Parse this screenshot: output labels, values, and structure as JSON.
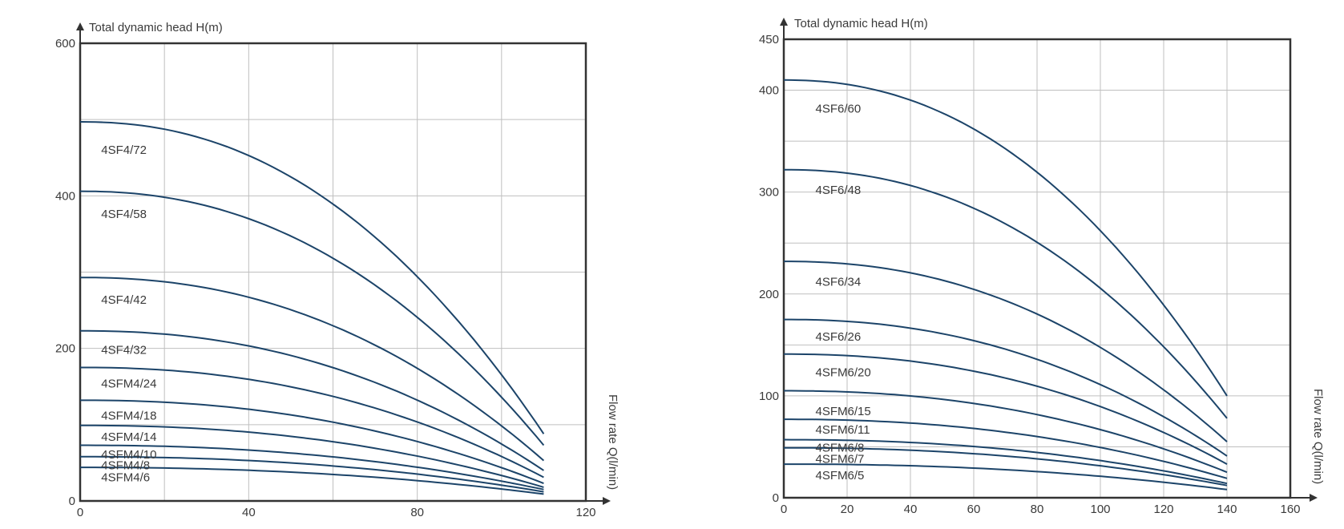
{
  "chart_data": [
    {
      "type": "line",
      "ylabel": "Total dynamic head H(m)",
      "xlabel": "Flow rate Q(l/min)",
      "xlim": [
        0,
        120
      ],
      "ylim": [
        0,
        600
      ],
      "xticks": [
        "0",
        "40",
        "80",
        "120"
      ],
      "yticks": [
        "0",
        "200",
        "400",
        "600"
      ],
      "grid": true,
      "series": [
        {
          "name": "4SF4/72",
          "shutoff": 497,
          "end": 88,
          "label_y": 460
        },
        {
          "name": "4SF4/58",
          "shutoff": 406,
          "end": 73,
          "label_y": 376
        },
        {
          "name": "4SF4/42",
          "shutoff": 293,
          "end": 53,
          "label_y": 264
        },
        {
          "name": "4SF4/32",
          "shutoff": 223,
          "end": 40,
          "label_y": 198
        },
        {
          "name": "4SFM4/24",
          "shutoff": 175,
          "end": 31,
          "label_y": 154
        },
        {
          "name": "4SFM4/18",
          "shutoff": 132,
          "end": 23,
          "label_y": 112
        },
        {
          "name": "4SFM4/14",
          "shutoff": 99,
          "end": 18,
          "label_y": 84
        },
        {
          "name": "4SFM4/10",
          "shutoff": 73,
          "end": 15,
          "label_y": 61
        },
        {
          "name": "4SFM4/8",
          "shutoff": 58,
          "end": 12,
          "label_y": 47
        },
        {
          "name": "4SFM4/6",
          "shutoff": 44,
          "end": 9,
          "label_y": 31
        }
      ],
      "x_end": 110
    },
    {
      "type": "line",
      "ylabel": "Total dynamic head H(m)",
      "xlabel": "Flow rate Q(l/min)",
      "xlim": [
        0,
        160
      ],
      "ylim": [
        0,
        450
      ],
      "xticks": [
        "0",
        "20",
        "40",
        "60",
        "80",
        "100",
        "120",
        "140",
        "160"
      ],
      "yticks": [
        "0",
        "100",
        "200",
        "300",
        "400",
        "450"
      ],
      "grid": true,
      "series": [
        {
          "name": "4SF6/60",
          "shutoff": 410,
          "end": 100,
          "label_y": 382
        },
        {
          "name": "4SF6/48",
          "shutoff": 322,
          "end": 78,
          "label_y": 302
        },
        {
          "name": "4SF6/34",
          "shutoff": 232,
          "end": 55,
          "label_y": 212
        },
        {
          "name": "4SF6/26",
          "shutoff": 175,
          "end": 41,
          "label_y": 158
        },
        {
          "name": "4SFM6/20",
          "shutoff": 141,
          "end": 33,
          "label_y": 123
        },
        {
          "name": "4SFM6/15",
          "shutoff": 105,
          "end": 25,
          "label_y": 85
        },
        {
          "name": "4SFM6/11",
          "shutoff": 77,
          "end": 19,
          "label_y": 67
        },
        {
          "name": "4SFM6/8",
          "shutoff": 57,
          "end": 14,
          "label_y": 49
        },
        {
          "name": "4SFM6/7",
          "shutoff": 49,
          "end": 12,
          "label_y": 38
        },
        {
          "name": "4SFM6/5",
          "shutoff": 33,
          "end": 8,
          "label_y": 22
        }
      ],
      "x_end": 140
    }
  ]
}
